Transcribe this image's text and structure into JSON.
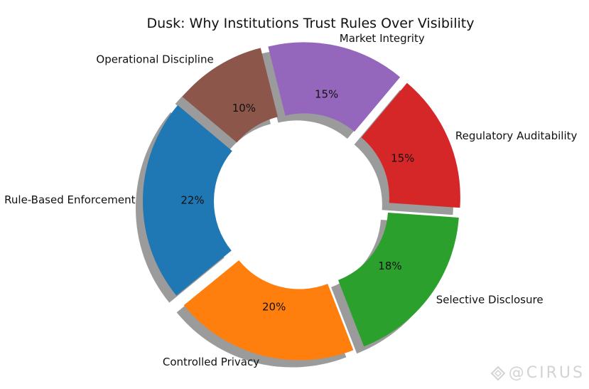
{
  "chart_data": {
    "type": "pie",
    "variant": "donut",
    "title": "Dusk: Why Institutions Trust Rules Over Visibility",
    "slices": [
      {
        "label": "Rule-Based Enforcement",
        "value": 22,
        "pct_label": "22%",
        "color": "#1f77b4"
      },
      {
        "label": "Controlled Privacy",
        "value": 20,
        "pct_label": "20%",
        "color": "#ff7f0e"
      },
      {
        "label": "Selective Disclosure",
        "value": 18,
        "pct_label": "18%",
        "color": "#2ca02c"
      },
      {
        "label": "Regulatory Auditability",
        "value": 15,
        "pct_label": "15%",
        "color": "#d62728"
      },
      {
        "label": "Market Integrity",
        "value": 15,
        "pct_label": "15%",
        "color": "#9467bd"
      },
      {
        "label": "Operational Discipline",
        "value": 10,
        "pct_label": "10%",
        "color": "#8c564b"
      }
    ],
    "shadow": true,
    "exploded": true,
    "direction": "counterclockwise"
  },
  "watermark": {
    "text": "@CIRUS",
    "color": "#d3d3d3"
  }
}
